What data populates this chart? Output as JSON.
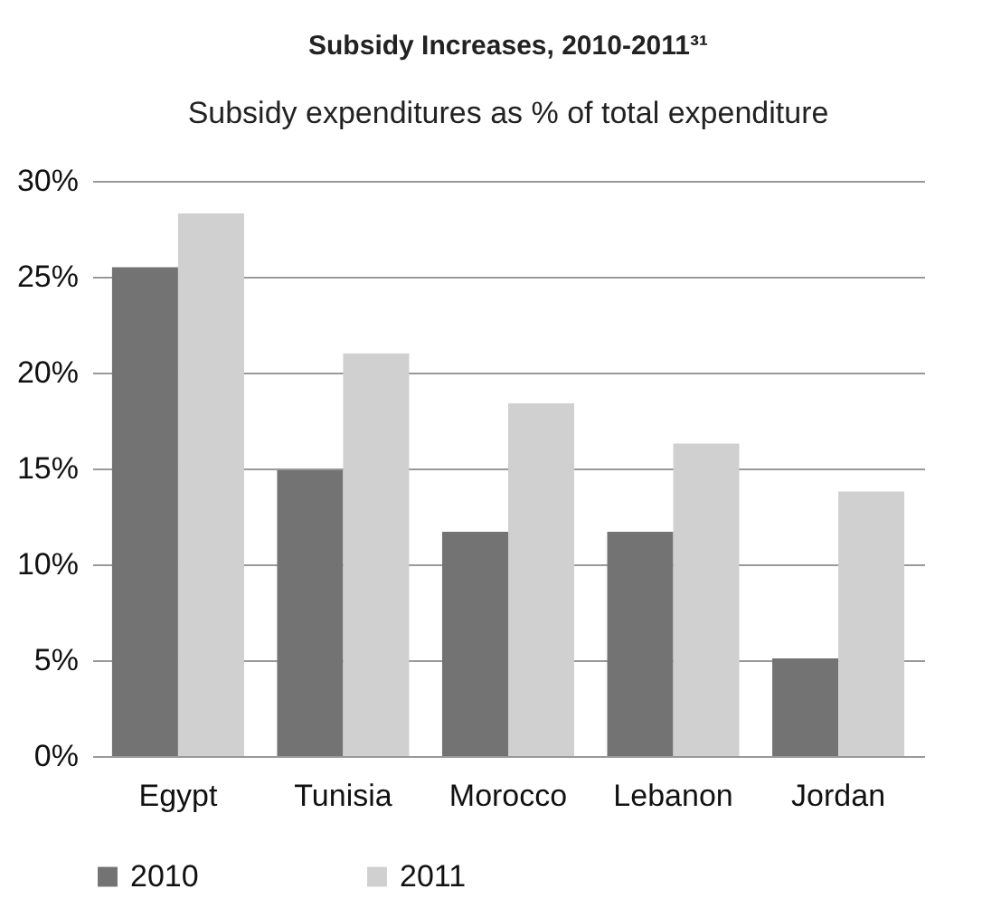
{
  "chart_data": {
    "type": "bar",
    "title": "Subsidy Increases, 2010-2011³¹",
    "subtitle": "Subsidy expenditures as % of total expenditure",
    "categories": [
      "Egypt",
      "Tunisia",
      "Morocco",
      "Lebanon",
      "Jordan"
    ],
    "series": [
      {
        "name": "2010",
        "color": "#737373",
        "values": [
          25.5,
          14.9,
          11.7,
          11.7,
          5.1
        ]
      },
      {
        "name": "2011",
        "color": "#d0d0d0",
        "values": [
          28.3,
          21.0,
          18.4,
          16.3,
          13.8
        ]
      }
    ],
    "ylim": [
      0,
      30
    ],
    "yticks": [
      {
        "value": 0,
        "label": "0%"
      },
      {
        "value": 5,
        "label": "5%"
      },
      {
        "value": 10,
        "label": "10%"
      },
      {
        "value": 15,
        "label": "15%"
      },
      {
        "value": 20,
        "label": "20%"
      },
      {
        "value": 25,
        "label": "25%"
      },
      {
        "value": 30,
        "label": "30%"
      }
    ],
    "grid": "y",
    "legend": "bottom"
  }
}
